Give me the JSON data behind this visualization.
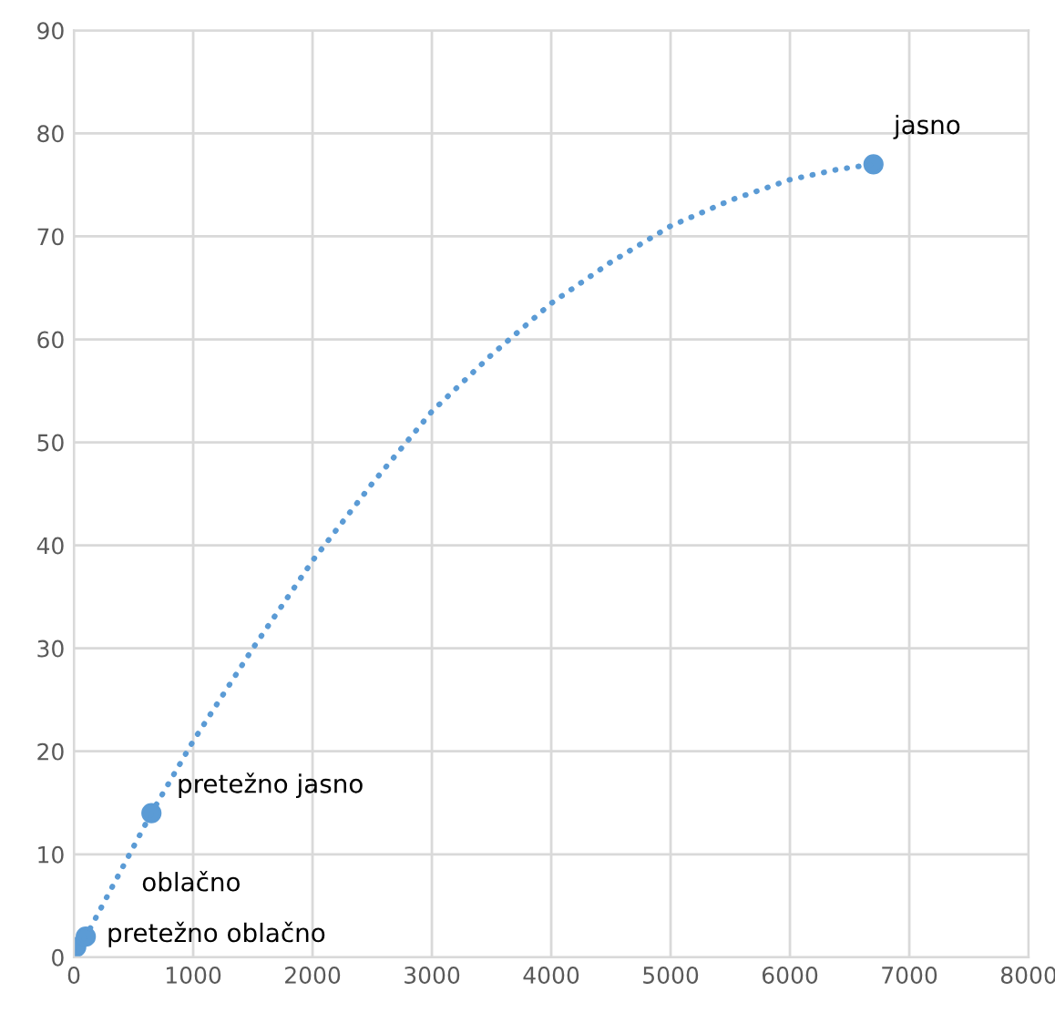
{
  "chart_data": {
    "type": "scatter",
    "series": [
      {
        "color": "#5b9bd5",
        "x": [
          20,
          100,
          650,
          6700
        ],
        "values": [
          1,
          2,
          14,
          77
        ]
      },
      {
        "type": "line",
        "marker": "none",
        "color": "#5b9bd5",
        "x": [
          20,
          100,
          650,
          1000,
          1500,
          2000,
          2500,
          3000,
          3500,
          4000,
          4500,
          5000,
          5500,
          6000,
          6400,
          6700
        ],
        "values": [
          1,
          2,
          14,
          21,
          30,
          38.5,
          46,
          53,
          58.5,
          63.5,
          67.5,
          71,
          73.5,
          75.5,
          76.5,
          77
        ]
      }
    ],
    "marker": "circle",
    "line_style": "dotted",
    "grid": true,
    "xlim": [
      0,
      8000
    ],
    "xticks": [
      0,
      1000,
      2000,
      3000,
      4000,
      5000,
      6000,
      7000,
      8000
    ],
    "ylim": [
      0,
      90
    ],
    "yticks": [
      0,
      10,
      20,
      30,
      40,
      50,
      60,
      70,
      80,
      90
    ],
    "annotations": [
      {
        "text": "pretežno oblačno",
        "x": 20,
        "y": 1
      },
      {
        "text": "oblačno",
        "x": 100,
        "y": 2
      },
      {
        "text": "pretežno jasno",
        "x": 650,
        "y": 14
      },
      {
        "text": "jasno",
        "x": 6700,
        "y": 77
      }
    ]
  }
}
